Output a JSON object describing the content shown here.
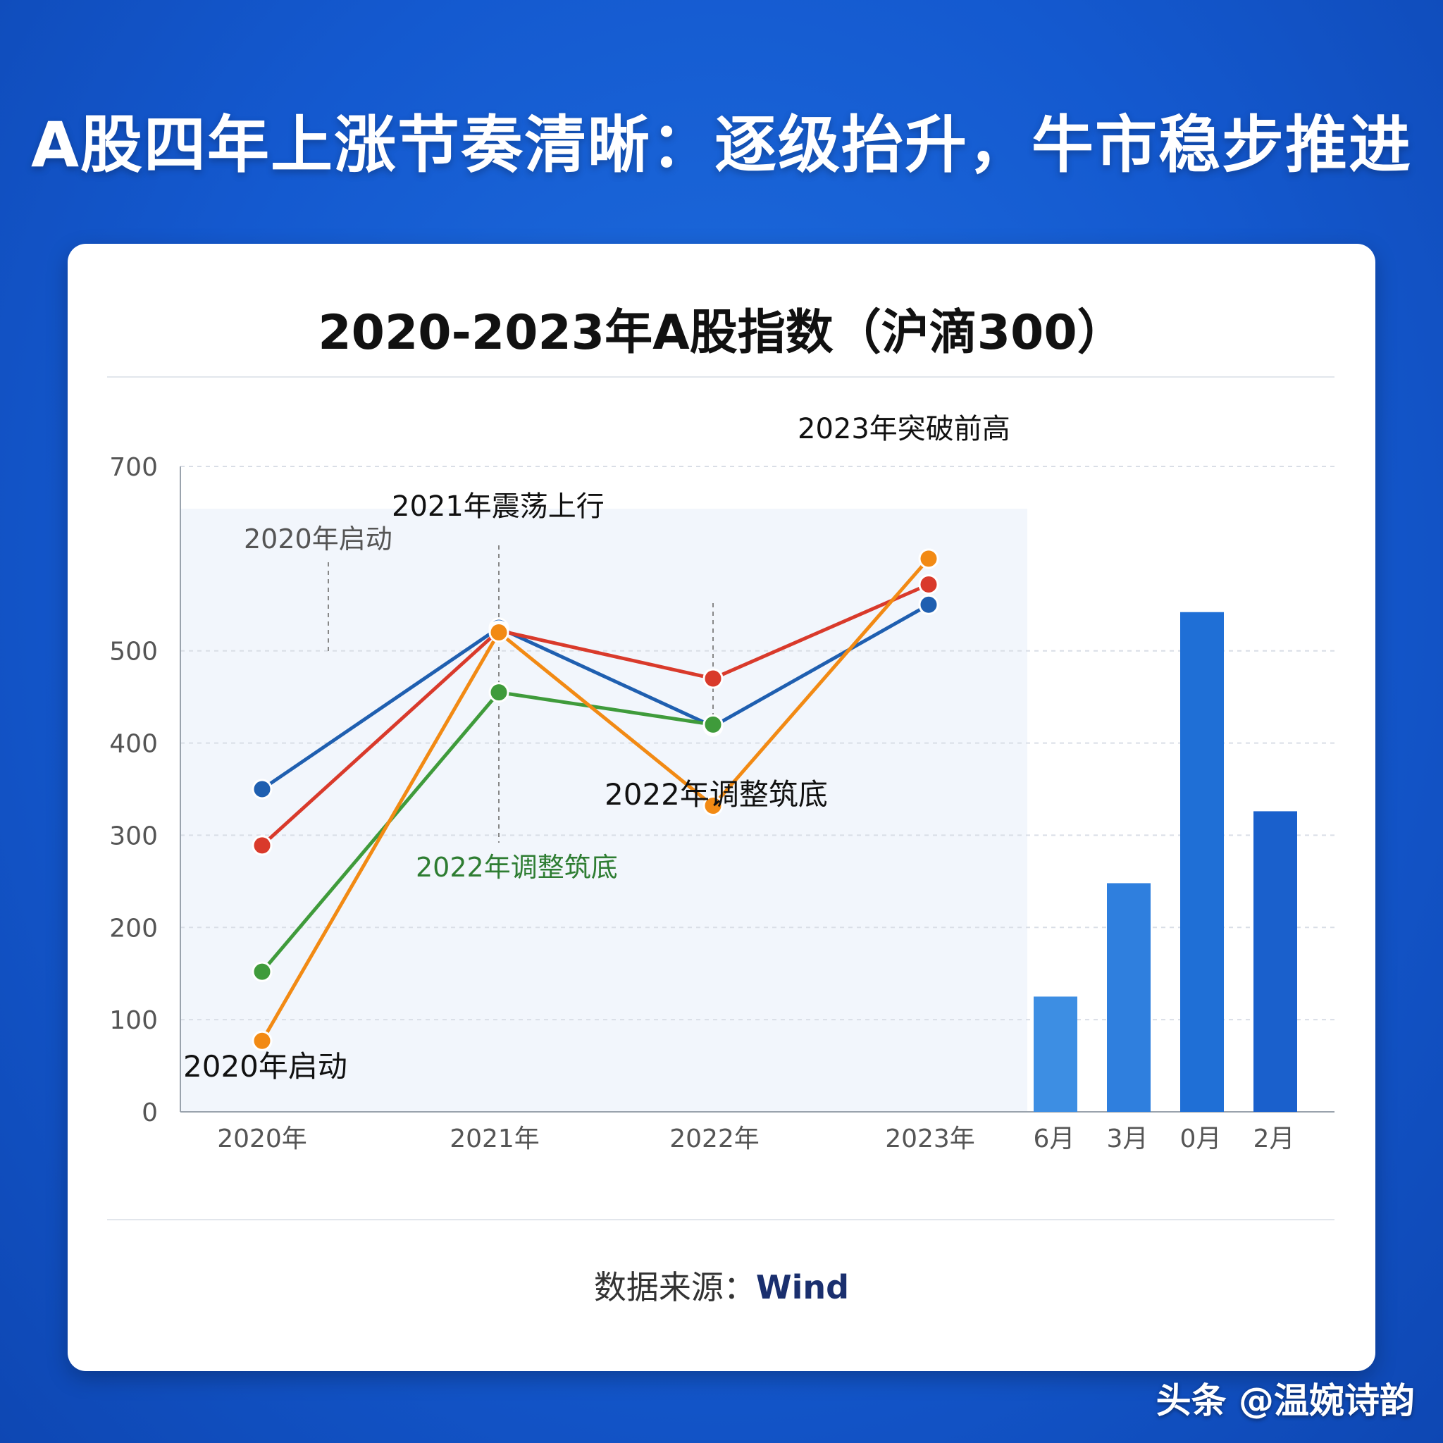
{
  "headline": "A股四年上涨节奏清晰：逐级抬升，牛市稳步推进",
  "source": {
    "label": "数据来源：",
    "value": "Wind"
  },
  "watermark": "头条 @温婉诗韵",
  "chart_data": {
    "type": "line",
    "title": "2020-2023年A股指数（沪滴300）",
    "ylim": [
      0,
      700
    ],
    "yticks": [
      0,
      100,
      200,
      300,
      400,
      500,
      700
    ],
    "categories": [
      "2020年",
      "2021年",
      "2022年",
      "2023年"
    ],
    "grid": true,
    "series": [
      {
        "color": "#1f5fb0",
        "values": [
          350,
          525,
          418,
          550
        ]
      },
      {
        "color": "#d93a2b",
        "values": [
          289,
          522,
          470,
          572
        ]
      },
      {
        "color": "#3f9b3b",
        "values": [
          152,
          455,
          420,
          null
        ]
      },
      {
        "color": "#f28a14",
        "values": [
          77,
          520,
          332,
          600
        ]
      }
    ],
    "annotations": [
      {
        "text": "2020年启动",
        "color": "#555555"
      },
      {
        "text": "2021年震荡上行",
        "color": "#111111"
      },
      {
        "text": "2023年突破前高",
        "color": "#111111"
      },
      {
        "text": "2022年调整筑底",
        "color": "#111111"
      },
      {
        "text": "2022年调整筑底",
        "color": "#2e7d32"
      },
      {
        "text": "2020年启动",
        "color": "#111111"
      }
    ],
    "bars": {
      "type": "bar",
      "categories": [
        "6月",
        "3月",
        "0月",
        "2月"
      ],
      "values": [
        125,
        248,
        542,
        326
      ],
      "colors": [
        "#3d8ee3",
        "#2f7fde",
        "#1f6fd6",
        "#1a60cc"
      ]
    }
  }
}
